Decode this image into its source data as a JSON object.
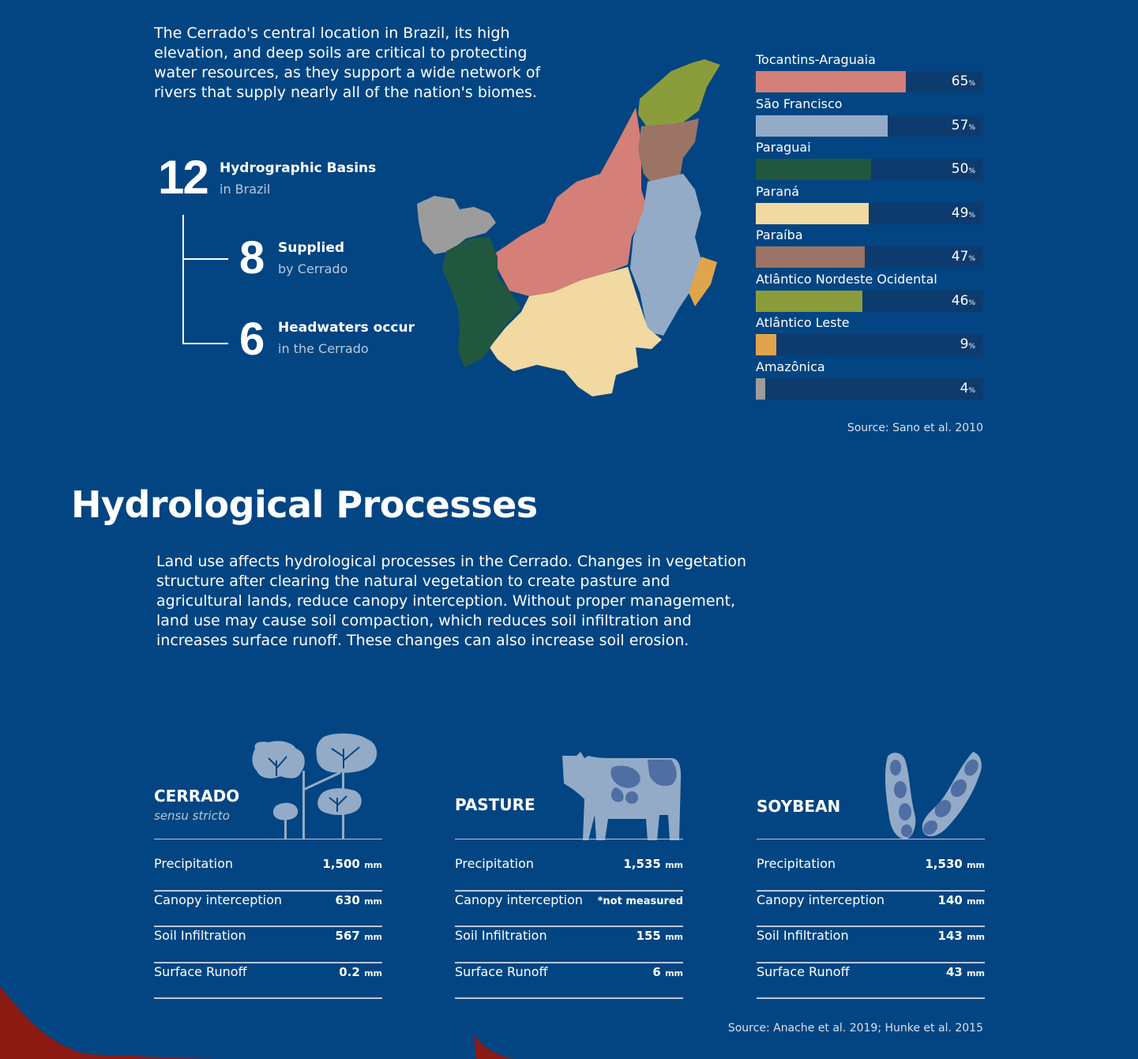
{
  "intro": "The Cerrado's central location in Brazil, its high elevation, and deep soils are critical to protecting water resources, as they support a wide network of rivers that supply nearly all of the nation's biomes.",
  "stats": {
    "basins": {
      "number": "12",
      "title": "Hydrographic Basins",
      "sub": "in Brazil"
    },
    "supplied": {
      "number": "8",
      "title": "Supplied",
      "sub": "by Cerrado"
    },
    "headwaters": {
      "number": "6",
      "title": "Headwaters occur",
      "sub": "in the Cerrado"
    }
  },
  "basin_bars": {
    "items": [
      {
        "name": "Tocantins-Araguaia",
        "value": 65,
        "color": "#d47f78"
      },
      {
        "name": "São Francisco",
        "value": 57,
        "color": "#93abc7"
      },
      {
        "name": "Paraguai",
        "value": 50,
        "color": "#21573f"
      },
      {
        "name": "Paraná",
        "value": 49,
        "color": "#f1d9a1"
      },
      {
        "name": "Paraíba",
        "value": 47,
        "color": "#9b7465"
      },
      {
        "name": "Atlântico Nordeste Ocidental",
        "value": 46,
        "color": "#8b9c3b"
      },
      {
        "name": "Atlântico Leste",
        "value": 9,
        "color": "#e0a54c"
      },
      {
        "name": "Amazônica",
        "value": 4,
        "color": "#9c9c9c"
      }
    ],
    "unit": "%",
    "source": "Source: Sano et al. 2010"
  },
  "hydro": {
    "title": "Hydrological Processes",
    "text": "Land use affects hydrological processes in the Cerrado. Changes in vegetation structure after clearing the natural vegetation to create pasture and agricultural lands, reduce canopy interception. Without proper management, land use may cause soil compaction, which reduces soil infiltration and increases surface runoff. These changes can also increase soil erosion."
  },
  "columns": [
    {
      "title": "CERRADO",
      "subtitle": "sensu stricto",
      "icon": "trees-icon",
      "rows": [
        {
          "label": "Precipitation",
          "value": "1,500",
          "unit": "mm"
        },
        {
          "label": "Canopy interception",
          "value": "630",
          "unit": "mm"
        },
        {
          "label": "Soil Infiltration",
          "value": "567",
          "unit": "mm"
        },
        {
          "label": "Surface Runoff",
          "value": "0.2",
          "unit": "mm"
        }
      ]
    },
    {
      "title": "PASTURE",
      "subtitle": "",
      "icon": "cow-icon",
      "rows": [
        {
          "label": "Precipitation",
          "value": "1,535",
          "unit": "mm"
        },
        {
          "label": "Canopy interception",
          "value": "*not measured",
          "unit": ""
        },
        {
          "label": "Soil Infiltration",
          "value": "155",
          "unit": "mm"
        },
        {
          "label": "Surface Runoff",
          "value": "6",
          "unit": "mm"
        }
      ]
    },
    {
      "title": "SOYBEAN",
      "subtitle": "",
      "icon": "soybean-pods-icon",
      "rows": [
        {
          "label": "Precipitation",
          "value": "1,530",
          "unit": "mm"
        },
        {
          "label": "Canopy interception",
          "value": "140",
          "unit": "mm"
        },
        {
          "label": "Soil Infiltration",
          "value": "143",
          "unit": "mm"
        },
        {
          "label": "Surface Runoff",
          "value": "43",
          "unit": "mm"
        }
      ]
    }
  ],
  "source2": "Source: Anache et al. 2019; Hunke et al. 2015",
  "colors": {
    "background": "#024582",
    "track": "#0d3b6e",
    "icon": "#93abc7",
    "accent_red": "#8b1a12"
  }
}
